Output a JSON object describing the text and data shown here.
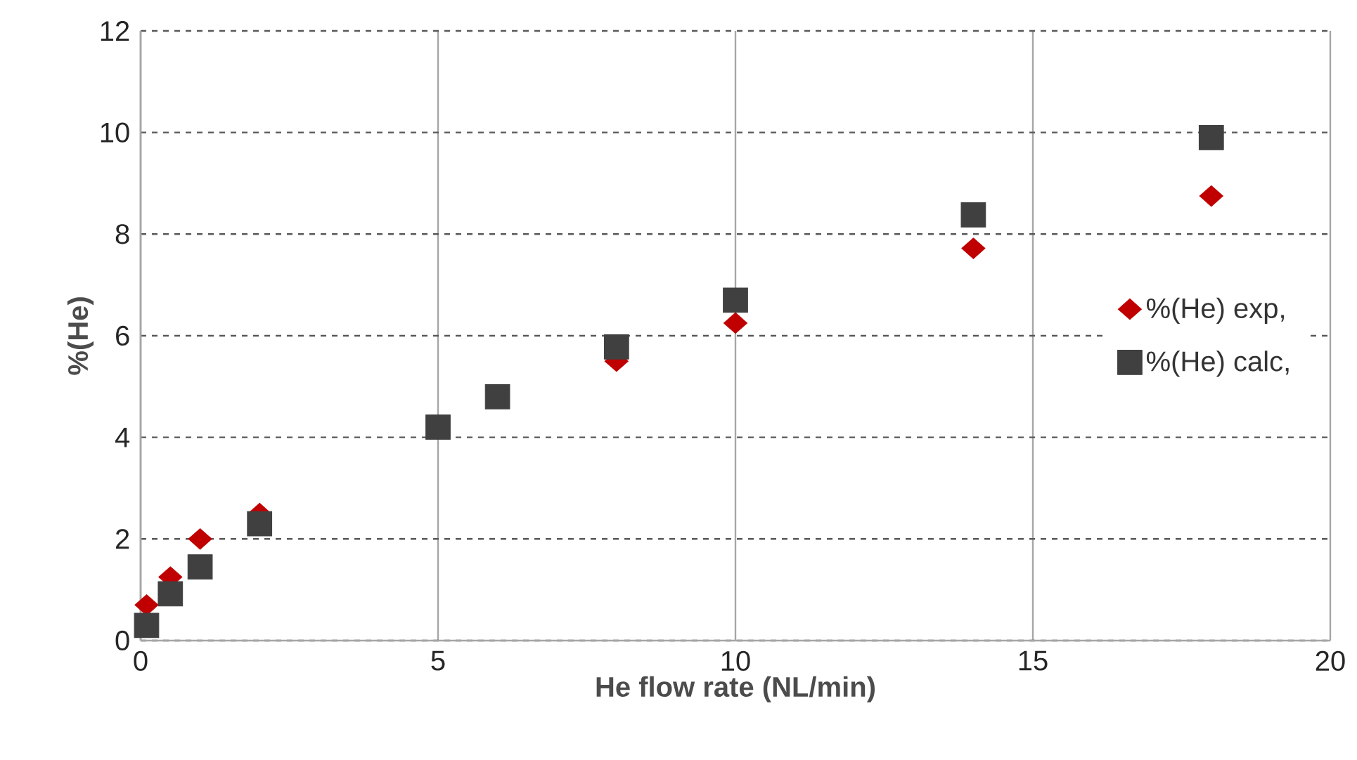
{
  "chart_data": {
    "type": "scatter",
    "xlabel": "He flow rate (NL/min)",
    "ylabel": "%(He)",
    "xlim": [
      0,
      20
    ],
    "xticks": [
      0,
      5,
      10,
      15,
      20
    ],
    "ylim": [
      0,
      12
    ],
    "yticks": [
      0,
      2,
      4,
      6,
      8,
      10,
      12
    ],
    "grid": true,
    "legend": "right",
    "series": [
      {
        "name": "%(He) exp,",
        "color": "#c00000",
        "marker": "diamond",
        "x": [
          0.1,
          0.5,
          1,
          2,
          8,
          10,
          14,
          18
        ],
        "values": [
          0.7,
          1.25,
          2.0,
          2.5,
          5.5,
          6.25,
          7.72,
          8.75
        ]
      },
      {
        "name": "%(He) calc,",
        "color": "#404040",
        "marker": "square",
        "x": [
          0.1,
          0.5,
          1,
          2,
          5,
          6,
          8,
          10,
          14,
          18
        ],
        "values": [
          0.3,
          0.92,
          1.45,
          2.3,
          4.2,
          4.8,
          5.78,
          6.7,
          8.38,
          9.9
        ]
      }
    ]
  }
}
